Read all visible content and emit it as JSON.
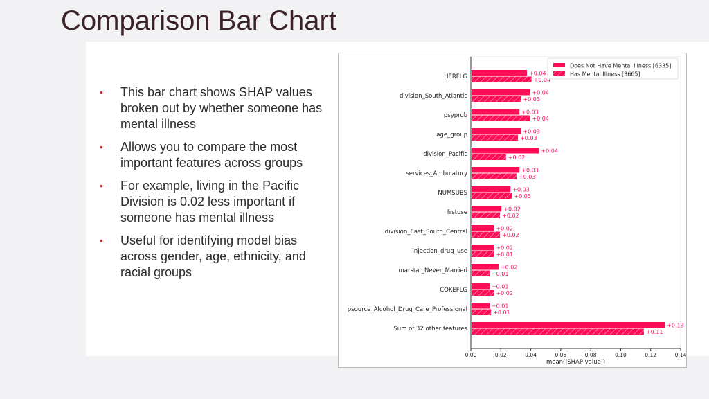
{
  "slide": {
    "title": "Comparison Bar Chart",
    "bullets": [
      "This bar chart shows SHAP values broken out by whether someone has mental illness",
      "Allows you to compare the most important features across groups",
      "For example, living in the Pacific Division is 0.02 less important if someone has mental illness",
      "Useful for identifying model bias across gender, age, ethnicity, and racial groups"
    ],
    "bullet_icon": "•"
  },
  "colors": {
    "bar": "#ff0d57",
    "label": "#ff0d57",
    "title_text": "#3a2228",
    "bullet_dot": "#d9262f"
  },
  "chart_data": {
    "type": "bar",
    "orientation": "horizontal",
    "title": "",
    "xlabel": "mean(|SHAP value|)",
    "ylabel": "",
    "xlim": [
      0,
      0.14
    ],
    "xticks": [
      "0.00",
      "0.02",
      "0.04",
      "0.06",
      "0.08",
      "0.10",
      "0.12",
      "0.14"
    ],
    "xtick_values": [
      0,
      0.02,
      0.04,
      0.06,
      0.08,
      0.1,
      0.12,
      0.14
    ],
    "legend_position": "top-right",
    "grid": false,
    "categories": [
      "HERFLG",
      "division_South_Atlantic",
      "psyprob",
      "age_group",
      "division_Pacific",
      "services_Ambulatory",
      "NUMSUBS",
      "frstuse",
      "division_East_South_Central",
      "injection_drug_use",
      "marstat_Never_Married",
      "COKEFLG",
      "psource_Alcohol_Drug_Care_Professional",
      "Sum of 32 other features"
    ],
    "series": [
      {
        "name": "Does Not Have Mental Illness [6335]",
        "pattern": "solid",
        "values": [
          0.037,
          0.039,
          0.032,
          0.033,
          0.045,
          0.032,
          0.026,
          0.02,
          0.015,
          0.015,
          0.018,
          0.012,
          0.012,
          0.129
        ],
        "labels": [
          "+0.04",
          "+0.04",
          "+0.03",
          "+0.03",
          "+0.04",
          "+0.03",
          "+0.03",
          "+0.02",
          "+0.02",
          "+0.02",
          "+0.02",
          "+0.01",
          "+0.01",
          "+0.13"
        ]
      },
      {
        "name": "Has Mental Illness [3665]",
        "pattern": "hatched",
        "values": [
          0.04,
          0.033,
          0.039,
          0.031,
          0.023,
          0.03,
          0.027,
          0.019,
          0.019,
          0.015,
          0.012,
          0.015,
          0.013,
          0.115
        ],
        "labels": [
          "+0.04",
          "+0.03",
          "+0.04",
          "+0.03",
          "+0.02",
          "+0.03",
          "+0.03",
          "+0.02",
          "+0.02",
          "+0.01",
          "+0.01",
          "+0.02",
          "+0.01",
          "+0.11"
        ]
      }
    ]
  }
}
